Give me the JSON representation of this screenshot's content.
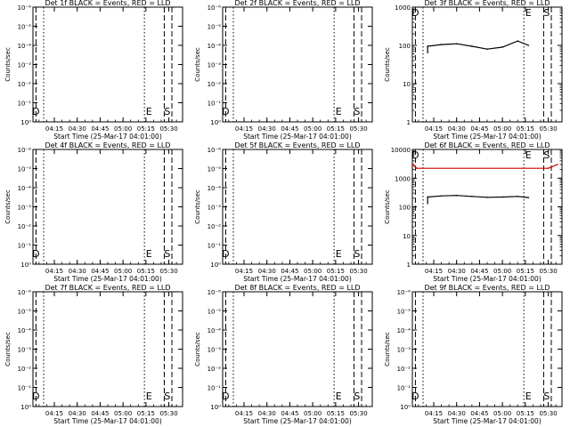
{
  "figure": {
    "background": "#ffffff",
    "event_color": "#000000",
    "lld_color": "#cc0000"
  },
  "chart_data": [
    {
      "type": "line",
      "detector": "1f",
      "title": "Det 1f BLACK = Events, RED = LLD",
      "xlabel": "Start Time (25-Mar-17 04:01:00)",
      "ylabel": "Counts/sec",
      "x_ticks": [
        "04:15",
        "04:30",
        "04:45",
        "05:00",
        "05:15",
        "05:30"
      ],
      "y_scale": "log",
      "ylim": [
        1,
        10
      ],
      "y_ticks": [
        "10⁰",
        "10⁻¹",
        "10⁻²",
        "10⁻³",
        "10⁻⁴",
        "10⁻⁵",
        "10⁻⁶"
      ],
      "markers": [
        "D",
        "E",
        "S"
      ],
      "series": []
    },
    {
      "type": "line",
      "detector": "2f",
      "title": "Det 2f BLACK = Events, RED = LLD",
      "xlabel": "Start Time (25-Mar-17 04:01:00)",
      "ylabel": "Counts/sec",
      "x_ticks": [
        "04:15",
        "04:30",
        "04:45",
        "05:00",
        "05:15",
        "05:30"
      ],
      "y_scale": "log",
      "ylim": [
        1,
        10
      ],
      "y_ticks": [
        "10⁰",
        "10⁻¹",
        "10⁻²",
        "10⁻³",
        "10⁻⁴",
        "10⁻⁵",
        "10⁻⁶"
      ],
      "markers": [
        "D",
        "E",
        "S"
      ],
      "series": []
    },
    {
      "type": "line",
      "detector": "3f",
      "title": "Det 3f BLACK = Events, RED = LLD",
      "xlabel": "Start Time (25-Mar-17 04:01:00)",
      "ylabel": "Counts/sec",
      "x_ticks": [
        "04:15",
        "04:30",
        "04:45",
        "05:00",
        "05:15",
        "05:30"
      ],
      "y_scale": "log",
      "ylim": [
        1,
        1000
      ],
      "y_ticks": [
        "1",
        "10",
        "100",
        "1000"
      ],
      "markers": [
        "D",
        "E",
        "S"
      ],
      "series": [
        {
          "color": "black",
          "x": [
            "04:11",
            "04:20",
            "04:30",
            "04:40",
            "04:50",
            "05:00",
            "05:10",
            "05:17"
          ],
          "values": [
            95,
            105,
            110,
            95,
            80,
            90,
            130,
            100
          ]
        }
      ]
    },
    {
      "type": "line",
      "detector": "4f",
      "title": "Det 4f BLACK = Events, RED = LLD",
      "xlabel": "Start Time (25-Mar-17 04:01:00)",
      "ylabel": "Counts/sec",
      "x_ticks": [
        "04:15",
        "04:30",
        "04:45",
        "05:00",
        "05:15",
        "05:30"
      ],
      "y_scale": "log",
      "ylim": [
        1,
        10
      ],
      "y_ticks": [
        "10⁰",
        "10⁻¹",
        "10⁻²",
        "10⁻³",
        "10⁻⁴",
        "10⁻⁵",
        "10⁻⁶"
      ],
      "markers": [
        "D",
        "E",
        "S"
      ],
      "series": []
    },
    {
      "type": "line",
      "detector": "5f",
      "title": "Det 5f BLACK = Events, RED = LLD",
      "xlabel": "Start Time (25-Mar-17 04:01:00)",
      "ylabel": "Counts/sec",
      "x_ticks": [
        "04:15",
        "04:30",
        "04:45",
        "05:00",
        "05:15",
        "05:30"
      ],
      "y_scale": "log",
      "ylim": [
        1,
        10
      ],
      "y_ticks": [
        "10⁰",
        "10⁻¹",
        "10⁻²",
        "10⁻³",
        "10⁻⁴",
        "10⁻⁵",
        "10⁻⁶"
      ],
      "markers": [
        "D",
        "E",
        "S"
      ],
      "series": []
    },
    {
      "type": "line",
      "detector": "6f",
      "title": "Det 6f BLACK = Events, RED = LLD",
      "xlabel": "Start Time (25-Mar-17 04:01:00)",
      "ylabel": "Counts/sec",
      "x_ticks": [
        "04:15",
        "04:30",
        "04:45",
        "05:00",
        "05:15",
        "05:30"
      ],
      "y_scale": "log",
      "ylim": [
        1,
        10000
      ],
      "y_ticks": [
        "1",
        "10",
        "100",
        "1000",
        "10000"
      ],
      "markers": [
        "D",
        "E",
        "S"
      ],
      "series": [
        {
          "color": "black",
          "x": [
            "04:11",
            "04:20",
            "04:30",
            "04:40",
            "04:50",
            "05:00",
            "05:10",
            "05:17"
          ],
          "values": [
            220,
            240,
            250,
            230,
            215,
            220,
            230,
            210
          ]
        },
        {
          "color": "red",
          "x": [
            "04:01",
            "04:04",
            "05:30",
            "05:36"
          ],
          "values": [
            3000,
            2200,
            2200,
            3000
          ]
        }
      ]
    },
    {
      "type": "line",
      "detector": "7f",
      "title": "Det 7f BLACK = Events, RED = LLD",
      "xlabel": "Start Time (25-Mar-17 04:01:00)",
      "ylabel": "Counts/sec",
      "x_ticks": [
        "04:15",
        "04:30",
        "04:45",
        "05:00",
        "05:15",
        "05:30"
      ],
      "y_scale": "log",
      "ylim": [
        1,
        10
      ],
      "y_ticks": [
        "10⁰",
        "10⁻¹",
        "10⁻²",
        "10⁻³",
        "10⁻⁴",
        "10⁻⁵",
        "10⁻⁶"
      ],
      "markers": [
        "D",
        "E",
        "S"
      ],
      "series": []
    },
    {
      "type": "line",
      "detector": "8f",
      "title": "Det 8f BLACK = Events, RED = LLD",
      "xlabel": "Start Time (25-Mar-17 04:01:00)",
      "ylabel": "Counts/sec",
      "x_ticks": [
        "04:15",
        "04:30",
        "04:45",
        "05:00",
        "05:15",
        "05:30"
      ],
      "y_scale": "log",
      "ylim": [
        1,
        10
      ],
      "y_ticks": [
        "10⁰",
        "10⁻¹",
        "10⁻²",
        "10⁻³",
        "10⁻⁴",
        "10⁻⁵",
        "10⁻⁶"
      ],
      "markers": [
        "D",
        "E",
        "S"
      ],
      "series": []
    },
    {
      "type": "line",
      "detector": "9f",
      "title": "Det 9f BLACK = Events, RED = LLD",
      "xlabel": "Start Time (25-Mar-17 04:01:00)",
      "ylabel": "Counts/sec",
      "x_ticks": [
        "04:15",
        "04:30",
        "04:45",
        "05:00",
        "05:15",
        "05:30"
      ],
      "y_scale": "log",
      "ylim": [
        1,
        10
      ],
      "y_ticks": [
        "10⁰",
        "10⁻¹",
        "10⁻²",
        "10⁻³",
        "10⁻⁴",
        "10⁻⁵",
        "10⁻⁶"
      ],
      "markers": [
        "D",
        "E",
        "S"
      ],
      "series": []
    }
  ]
}
